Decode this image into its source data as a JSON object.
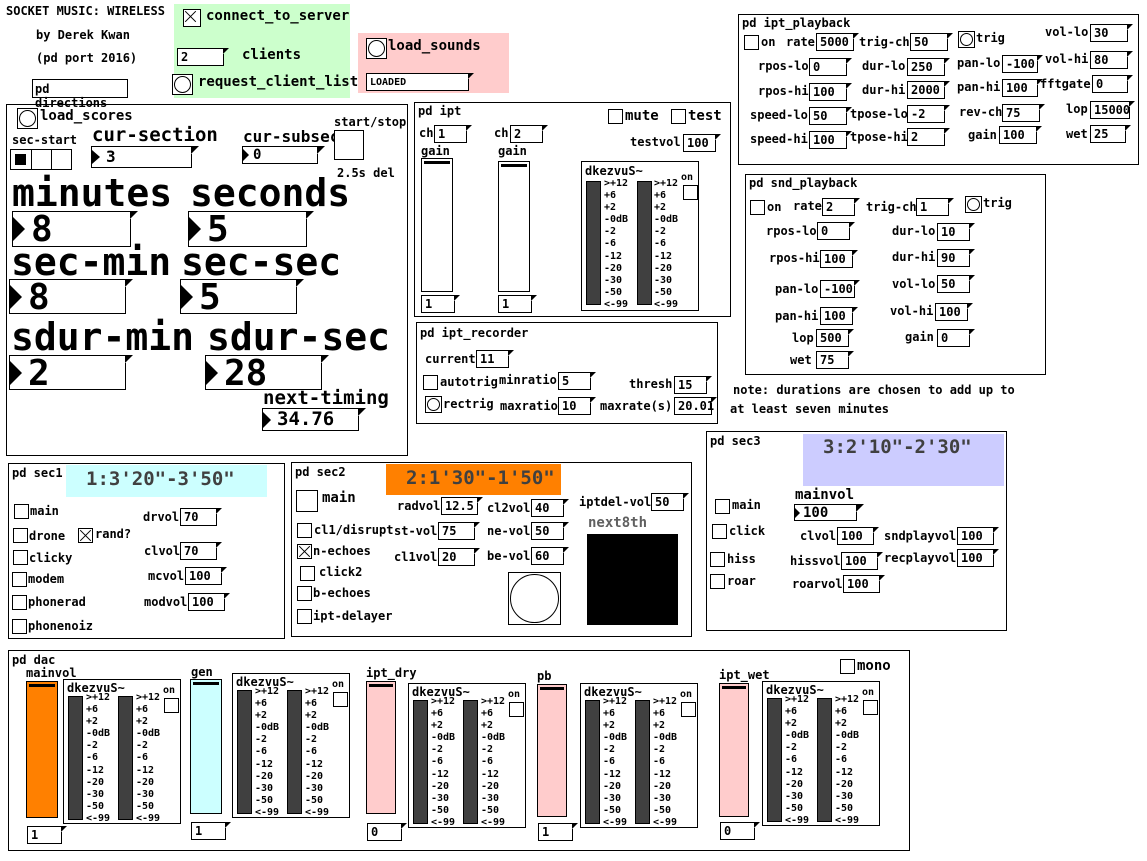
{
  "header": {
    "title": "SOCKET MUSIC: WIRELESS",
    "author": "by Derek Kwan",
    "port": "(pd port 2016)",
    "directions": "pd directions"
  },
  "server": {
    "connect": "connect_to_server",
    "clients_value": "2",
    "clients_label": "clients",
    "request": "request_client_list"
  },
  "sounds": {
    "load": "load_sounds",
    "status": "LOADED"
  },
  "scores": {
    "load": "load_scores",
    "sec_start": "sec-start",
    "cur_section_label": "cur-section",
    "cur_section": "3",
    "cur_subsec_label": "cur-subsec",
    "cur_subsec": "0",
    "start_stop": "start/stop",
    "del": "2.5s del",
    "minutes_label": "minutes",
    "minutes": "8",
    "seconds_label": "seconds",
    "seconds": "5",
    "sec_min_label": "sec-min",
    "sec_min": "8",
    "sec_sec_label": "sec-sec",
    "sec_sec": "5",
    "sdur_min_label": "sdur-min",
    "sdur_min": "2",
    "sdur_sec_label": "sdur-sec",
    "sdur_sec": "28",
    "next_timing_label": "next-timing",
    "next_timing": "34.76"
  },
  "ipt": {
    "title": "pd ipt",
    "mute": "mute",
    "test": "test",
    "ch1_label": "ch",
    "ch1": "1",
    "ch2_label": "ch",
    "ch2": "2",
    "gain1": "gain",
    "gain2": "gain",
    "testvol_label": "testvol",
    "testvol": "100",
    "out1": "1",
    "out2": "1",
    "meter_title": "dkezvuS~",
    "meter_on": "on"
  },
  "vu_scale": [
    ">+12",
    "+6",
    "+2",
    "-0dB",
    "-2",
    "-6",
    "-12",
    "-20",
    "-30",
    "-50",
    "<-99"
  ],
  "recorder": {
    "title": "pd ipt_recorder",
    "current_label": "current",
    "current": "11",
    "autotrig": "autotrig",
    "minratio_label": "minratio",
    "minratio": "5",
    "thresh_label": "thresh",
    "thresh": "15",
    "rectrig": "rectrig",
    "maxratio_label": "maxratio",
    "maxratio": "10",
    "maxrate_label": "maxrate(s)",
    "maxrate": "20.01"
  },
  "ipt_playback": {
    "title": "pd ipt_playback",
    "on": "on",
    "rate_label": "rate",
    "rate": "5000",
    "trigch_label": "trig-ch",
    "trigch": "50",
    "trig": "trig",
    "vollo_label": "vol-lo",
    "vollo": "30",
    "rposlo_label": "rpos-lo",
    "rposlo": "0",
    "durlo_label": "dur-lo",
    "durlo": "250",
    "panlo_label": "pan-lo",
    "panlo": "-100",
    "volhi_label": "vol-hi",
    "volhi": "80",
    "rposhi_label": "rpos-hi",
    "rposhi": "100",
    "durhi_label": "dur-hi",
    "durhi": "2000",
    "panhi_label": "pan-hi",
    "panhi": "100",
    "fftgate_label": "fftgate",
    "fftgate": "0",
    "speedlo_label": "speed-lo",
    "speedlo": "50",
    "tposelo_label": "tpose-lo",
    "tposelo": "-2",
    "revch_label": "rev-ch",
    "revch": "75",
    "lop_label": "lop",
    "lop": "15000",
    "speedhi_label": "speed-hi",
    "speedhi": "100",
    "tposehi_label": "tpose-hi",
    "tposehi": "2",
    "gain_label": "gain",
    "gain": "100",
    "wet_label": "wet",
    "wet": "25"
  },
  "snd_playback": {
    "title": "pd snd_playback",
    "on": "on",
    "rate_label": "rate",
    "rate": "2",
    "trigch_label": "trig-ch",
    "trigch": "1",
    "trig": "trig",
    "rposlo_label": "rpos-lo",
    "rposlo": "0",
    "durlo_label": "dur-lo",
    "durlo": "10",
    "rposhi_label": "rpos-hi",
    "rposhi": "100",
    "durhi_label": "dur-hi",
    "durhi": "90",
    "panlo_label": "pan-lo",
    "panlo": "-100",
    "vollo_label": "vol-lo",
    "vollo": "50",
    "panhi_label": "pan-hi",
    "panhi": "100",
    "volhi_label": "vol-hi",
    "volhi": "100",
    "lop_label": "lop",
    "lop": "500",
    "gain_label": "gain",
    "gain": "0",
    "wet_label": "wet",
    "wet": "75"
  },
  "note": {
    "line1": "note: durations are chosen to add up to",
    "line2": "at least seven minutes"
  },
  "sec1": {
    "title": "pd sec1",
    "banner": "1:3'20\"-3'50\"",
    "main": "main",
    "drone": "drone",
    "rand": "rand?",
    "clicky": "clicky",
    "modem": "modem",
    "phonerad": "phonerad",
    "phonenoiz": "phonenoiz",
    "drvol_label": "drvol",
    "drvol": "70",
    "clvol_label": "clvol",
    "clvol": "70",
    "mcvol_label": "mcvol",
    "mcvol": "100",
    "modvol_label": "modvol",
    "modvol": "100"
  },
  "sec2": {
    "title": "pd sec2",
    "banner": "2:1'30\"-1'50\"",
    "main": "main",
    "cl1": "cl1/disrupt",
    "necho": "n-echoes",
    "click2": "click2",
    "becho": "b-echoes",
    "iptdelayer": "ipt-delayer",
    "radvol_label": "radvol",
    "radvol": "12.5",
    "cl2vol_label": "cl2vol",
    "cl2vol": "40",
    "stvol_label": "st-vol",
    "stvol": "75",
    "nevol_label": "ne-vol",
    "nevol": "50",
    "cl1vol_label": "cl1vol",
    "cl1vol": "20",
    "bevol_label": "be-vol",
    "bevol": "60",
    "iptdel_label": "iptdel-vol",
    "iptdel": "50",
    "next8th": "next8th"
  },
  "sec3": {
    "title": "pd sec3",
    "banner": "3:2'10\"-2'30\"",
    "main": "main",
    "click": "click",
    "hiss": "hiss",
    "roar": "roar",
    "mainvol_label": "mainvol",
    "mainvol": "100",
    "clvol_label": "clvol",
    "clvol": "100",
    "sndplay_label": "sndplayvol",
    "sndplay": "100",
    "hissvol_label": "hissvol",
    "hissvol": "100",
    "recplay_label": "recplayvol",
    "recplay": "100",
    "roarvol_label": "roarvol",
    "roarvol": "100"
  },
  "dac": {
    "title": "pd dac",
    "mono": "mono",
    "meter_title": "dkezvuS~",
    "meter_on": "on",
    "channels": [
      {
        "label": "mainvol",
        "value": "1"
      },
      {
        "label": "gen",
        "value": "1"
      },
      {
        "label": "ipt_dry",
        "value": "0"
      },
      {
        "label": "pb",
        "value": "1"
      },
      {
        "label": "ipt_wet",
        "value": "0"
      }
    ]
  },
  "colors": {
    "server_bg": "#ccffcc",
    "sounds_bg": "#ffcccc",
    "sec1_bg": "#ccffff",
    "sec2_bg": "#ff8000",
    "sec3_bg": "#ccccff",
    "orange": "#ff8000",
    "cyan": "#ccffff",
    "pink": "#ffcccc",
    "vu": "#404040"
  }
}
